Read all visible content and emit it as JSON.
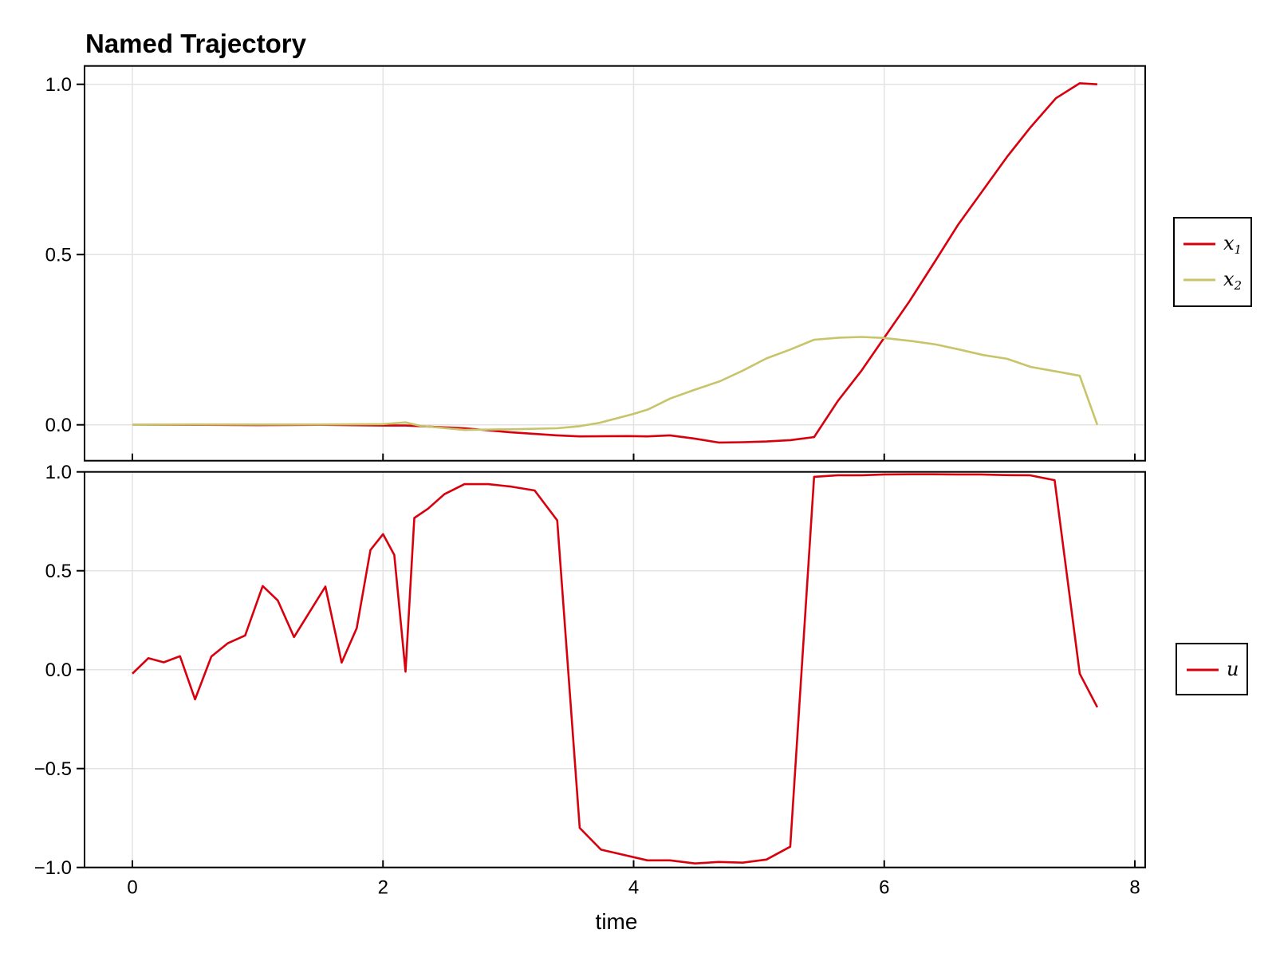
{
  "figure": {
    "title": "Named Trajectory",
    "xlabel": "time"
  },
  "colors": {
    "x1": "#d8000d",
    "x2": "#c8c46a",
    "u": "#d8000d",
    "grid": "#e3e3e3",
    "frame": "#000000"
  },
  "legend_top": {
    "entries": [
      {
        "base": "x",
        "sub": "1",
        "series": "x1"
      },
      {
        "base": "x",
        "sub": "2",
        "series": "x2"
      }
    ]
  },
  "legend_bottom": {
    "entries": [
      {
        "base": "u",
        "sub": "",
        "series": "u"
      }
    ]
  },
  "chart_data": [
    {
      "type": "line",
      "title": "Named Trajectory",
      "xlabel": "",
      "ylabel": "",
      "xlim": [
        -0.39,
        8.08
      ],
      "ylim": [
        -0.105,
        1.054
      ],
      "xticks": [
        0,
        2,
        4,
        6,
        8
      ],
      "yticks": [
        0.0,
        0.5,
        1.0
      ],
      "ytick_labels": [
        "0.0",
        "0.5",
        "1.0"
      ],
      "grid": true,
      "legend_position": "right",
      "series": [
        {
          "name": "x1",
          "label": "x_1",
          "x": [
            0,
            0.5,
            1.0,
            1.5,
            2.0,
            2.18,
            2.65,
            3.02,
            3.39,
            3.57,
            3.96,
            4.11,
            4.29,
            4.48,
            4.68,
            4.87,
            5.06,
            5.25,
            5.44,
            5.63,
            5.82,
            6.0,
            6.2,
            6.41,
            6.59,
            6.79,
            6.98,
            7.17,
            7.37,
            7.56,
            7.7
          ],
          "y": [
            0.0,
            0.0,
            -0.001,
            0.0,
            -0.002,
            -0.002,
            -0.01,
            -0.022,
            -0.031,
            -0.034,
            -0.033,
            -0.034,
            -0.031,
            -0.04,
            -0.052,
            -0.051,
            -0.049,
            -0.045,
            -0.036,
            0.07,
            0.16,
            0.256,
            0.362,
            0.483,
            0.588,
            0.69,
            0.787,
            0.875,
            0.959,
            1.003,
            1.0
          ]
        },
        {
          "name": "x2",
          "label": "x_2",
          "x": [
            0,
            0.5,
            1.0,
            1.5,
            2.0,
            2.18,
            2.3,
            2.65,
            3.02,
            3.39,
            3.57,
            3.73,
            4.0,
            4.12,
            4.29,
            4.48,
            4.69,
            4.87,
            5.06,
            5.25,
            5.44,
            5.64,
            5.82,
            6.0,
            6.22,
            6.41,
            6.6,
            6.79,
            6.98,
            7.17,
            7.37,
            7.56,
            7.7
          ],
          "y": [
            0.0,
            0.001,
            0.001,
            0.001,
            0.002,
            0.007,
            -0.003,
            -0.015,
            -0.013,
            -0.01,
            -0.004,
            0.006,
            0.032,
            0.046,
            0.077,
            0.102,
            0.128,
            0.159,
            0.195,
            0.221,
            0.25,
            0.256,
            0.258,
            0.255,
            0.246,
            0.236,
            0.221,
            0.205,
            0.194,
            0.17,
            0.157,
            0.144,
            0.0
          ]
        }
      ]
    },
    {
      "type": "line",
      "title": "",
      "xlabel": "time",
      "ylabel": "",
      "xlim": [
        -0.39,
        8.08
      ],
      "ylim": [
        -1.0,
        1.0
      ],
      "xticks": [
        0,
        2,
        4,
        6,
        8
      ],
      "yticks": [
        -1.0,
        -0.5,
        0.0,
        0.5,
        1.0
      ],
      "ytick_labels": [
        "−1.0",
        "−0.5",
        "0.0",
        "0.5",
        "1.0"
      ],
      "grid": true,
      "legend_position": "right",
      "series": [
        {
          "name": "u",
          "label": "u",
          "x": [
            0,
            0.127,
            0.25,
            0.38,
            0.5,
            0.63,
            0.76,
            0.9,
            1.04,
            1.16,
            1.29,
            1.54,
            1.67,
            1.79,
            1.9,
            2.0,
            2.09,
            2.18,
            2.25,
            2.36,
            2.49,
            2.65,
            2.84,
            3.02,
            3.21,
            3.39,
            3.57,
            3.74,
            4.11,
            4.29,
            4.49,
            4.68,
            4.87,
            5.06,
            5.25,
            5.44,
            5.63,
            5.82,
            6.0,
            6.2,
            6.39,
            6.58,
            6.77,
            6.96,
            7.16,
            7.36,
            7.56,
            7.7
          ],
          "y": [
            -0.02,
            0.058,
            0.037,
            0.068,
            -0.15,
            0.066,
            0.133,
            0.173,
            0.423,
            0.35,
            0.165,
            0.42,
            0.036,
            0.21,
            0.605,
            0.685,
            0.58,
            -0.01,
            0.767,
            0.814,
            0.887,
            0.938,
            0.938,
            0.926,
            0.906,
            0.755,
            -0.8,
            -0.91,
            -0.964,
            -0.964,
            -0.98,
            -0.972,
            -0.976,
            -0.96,
            -0.895,
            0.975,
            0.983,
            0.983,
            0.987,
            0.988,
            0.988,
            0.987,
            0.987,
            0.984,
            0.983,
            0.958,
            -0.02,
            -0.19
          ]
        }
      ]
    }
  ]
}
